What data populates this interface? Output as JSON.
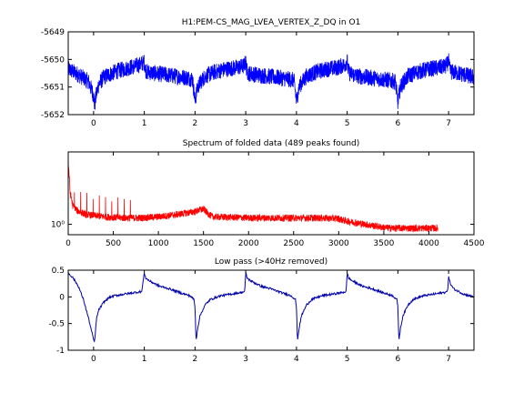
{
  "chart_data": [
    {
      "type": "line",
      "title": "H1:PEM-CS_MAG_LVEA_VERTEX_Z_DQ in O1",
      "xlabel": "",
      "ylabel": "",
      "xlim": [
        -0.5,
        7.5
      ],
      "ylim": [
        -5652,
        -5649
      ],
      "xticks": [
        0,
        1,
        2,
        3,
        4,
        5,
        6,
        7
      ],
      "yticks": [
        -5649,
        -5650,
        -5651,
        -5652
      ],
      "xtick_labels": [
        "0",
        "1",
        "2",
        "3",
        "4",
        "5",
        "6",
        "7"
      ],
      "ytick_labels": [
        "-5649",
        "-5650",
        "-5651",
        "-5652"
      ],
      "series_color": "#0000ff",
      "grid": false,
      "description_period": 1.0,
      "series": [
        {
          "x": [
            -0.5,
            -0.3,
            -0.1,
            0.0,
            0.02,
            0.05,
            0.1,
            0.2,
            0.3,
            0.5,
            0.6,
            0.7,
            0.9,
            0.95,
            1.0,
            1.02,
            1.05,
            1.2,
            1.4,
            1.6,
            1.8,
            1.95,
            2.0,
            2.02,
            2.05,
            2.1,
            2.2,
            2.4,
            2.6,
            2.8,
            2.95,
            3.0,
            3.02,
            3.05,
            3.2,
            3.4,
            3.6,
            3.8,
            3.95,
            4.0,
            4.02,
            4.05,
            4.1,
            4.2,
            4.4,
            4.6,
            4.8,
            4.95,
            5.0,
            5.02,
            5.05,
            5.2,
            5.4,
            5.6,
            5.8,
            5.95,
            6.0,
            6.02,
            6.05,
            6.1,
            6.2,
            6.4,
            6.6,
            6.8,
            6.95,
            7.0,
            7.02,
            7.05,
            7.2,
            7.4,
            7.5
          ],
          "y": [
            -5650.35,
            -5650.55,
            -5650.8,
            -5651.3,
            -5651.7,
            -5651.3,
            -5650.9,
            -5650.65,
            -5650.55,
            -5650.4,
            -5650.35,
            -5650.3,
            -5650.2,
            -5650.15,
            -5650.1,
            -5650.35,
            -5650.45,
            -5650.5,
            -5650.55,
            -5650.6,
            -5650.65,
            -5650.7,
            -5651.5,
            -5651.3,
            -5651.0,
            -5650.85,
            -5650.6,
            -5650.45,
            -5650.35,
            -5650.3,
            -5650.25,
            -5650.1,
            -5650.4,
            -5650.5,
            -5650.55,
            -5650.6,
            -5650.65,
            -5650.7,
            -5650.75,
            -5651.5,
            -5651.3,
            -5651.0,
            -5650.85,
            -5650.6,
            -5650.45,
            -5650.35,
            -5650.3,
            -5650.2,
            -5650.05,
            -5650.4,
            -5650.5,
            -5650.6,
            -5650.65,
            -5650.7,
            -5650.75,
            -5650.8,
            -5651.55,
            -5651.3,
            -5651.0,
            -5650.85,
            -5650.6,
            -5650.45,
            -5650.35,
            -5650.3,
            -5650.25,
            -5650.05,
            -5650.35,
            -5650.45,
            -5650.5,
            -5650.6,
            -5650.65
          ],
          "noise_amplitude": 0.3
        }
      ]
    },
    {
      "type": "line",
      "title": "Spectrum of folded data (489 peaks found)",
      "xlabel": "",
      "ylabel": "",
      "yscale": "log",
      "xlim": [
        0,
        4500
      ],
      "xticks": [
        0,
        500,
        1000,
        1500,
        2000,
        2500,
        3000,
        3500,
        4000,
        4500
      ],
      "xtick_labels": [
        "0",
        "500",
        "1000",
        "1500",
        "2000",
        "2500",
        "3000",
        "3500",
        "4000",
        "4500"
      ],
      "ytick_labels": [
        "10⁰"
      ],
      "series_color": "#ff0000",
      "grid": false,
      "series": [
        {
          "x": [
            0,
            20,
            50,
            100,
            200,
            400,
            600,
            800,
            1000,
            1200,
            1400,
            1500,
            1550,
            1600,
            1800,
            2000,
            2200,
            2400,
            2600,
            2800,
            3000,
            3050,
            3200,
            3400,
            3500,
            3600,
            3700,
            3800,
            4000,
            4100
          ],
          "y": [
            8.0,
            3.0,
            1.9,
            1.6,
            1.4,
            1.3,
            1.25,
            1.25,
            1.3,
            1.4,
            1.55,
            1.7,
            1.45,
            1.3,
            1.28,
            1.25,
            1.25,
            1.25,
            1.25,
            1.25,
            1.22,
            1.15,
            1.05,
            0.95,
            0.9,
            0.88,
            0.88,
            0.88,
            0.88,
            0.88
          ],
          "noise_amplitude": 0.12
        }
      ]
    },
    {
      "type": "line",
      "title": "Low pass (>40Hz removed)",
      "xlabel": "",
      "ylabel": "",
      "xlim": [
        -0.5,
        7.5
      ],
      "ylim": [
        -1,
        0.5
      ],
      "xticks": [
        0,
        1,
        2,
        3,
        4,
        5,
        6,
        7
      ],
      "yticks": [
        0.5,
        0,
        -0.5,
        -1
      ],
      "xtick_labels": [
        "0",
        "1",
        "2",
        "3",
        "4",
        "5",
        "6",
        "7"
      ],
      "ytick_labels": [
        "0.5",
        "0",
        "-0.5",
        "-1"
      ],
      "series_color": "#0000aa",
      "grid": false,
      "series": [
        {
          "x": [
            -0.5,
            -0.4,
            -0.3,
            -0.2,
            -0.1,
            0.0,
            0.02,
            0.04,
            0.06,
            0.1,
            0.2,
            0.3,
            0.4,
            0.6,
            0.8,
            0.95,
            1.0,
            1.03,
            1.1,
            1.3,
            1.5,
            1.7,
            1.9,
            1.98,
            2.0,
            2.02,
            2.05,
            2.1,
            2.2,
            2.3,
            2.5,
            2.7,
            2.9,
            2.98,
            3.0,
            3.03,
            3.1,
            3.3,
            3.5,
            3.7,
            3.9,
            3.98,
            4.0,
            4.02,
            4.05,
            4.1,
            4.2,
            4.3,
            4.5,
            4.7,
            4.9,
            4.98,
            5.0,
            5.03,
            5.1,
            5.3,
            5.5,
            5.7,
            5.9,
            5.98,
            6.0,
            6.02,
            6.05,
            6.1,
            6.2,
            6.3,
            6.5,
            6.7,
            6.9,
            6.98,
            7.0,
            7.03,
            7.1,
            7.3,
            7.5
          ],
          "y": [
            0.45,
            0.35,
            0.2,
            -0.05,
            -0.4,
            -0.8,
            -0.85,
            -0.6,
            -0.4,
            -0.25,
            -0.1,
            -0.02,
            0.02,
            0.05,
            0.08,
            0.1,
            0.45,
            0.35,
            0.3,
            0.2,
            0.15,
            0.08,
            0.02,
            -0.05,
            -0.2,
            -0.82,
            -0.6,
            -0.35,
            -0.15,
            -0.05,
            0.02,
            0.05,
            0.08,
            0.1,
            0.45,
            0.35,
            0.3,
            0.2,
            0.15,
            0.08,
            0.02,
            -0.05,
            -0.2,
            -0.82,
            -0.6,
            -0.35,
            -0.15,
            -0.05,
            0.02,
            0.05,
            0.08,
            0.1,
            0.45,
            0.35,
            0.3,
            0.2,
            0.15,
            0.08,
            0.02,
            -0.05,
            -0.2,
            -0.82,
            -0.6,
            -0.35,
            -0.15,
            -0.05,
            0.02,
            0.05,
            0.08,
            0.1,
            0.4,
            0.25,
            0.15,
            0.05,
            0.0
          ],
          "noise_amplitude": 0.02
        }
      ]
    }
  ]
}
